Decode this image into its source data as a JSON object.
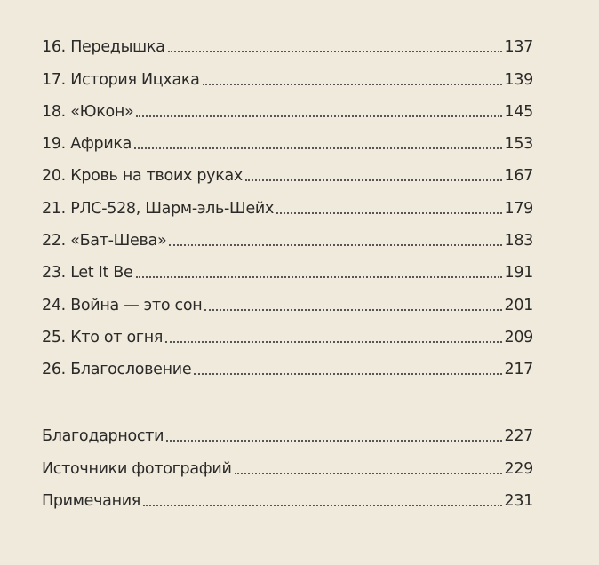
{
  "chapters": [
    {
      "title": "16. Передышка",
      "page": "137"
    },
    {
      "title": "17. История Ицхака",
      "page": "139"
    },
    {
      "title": "18. «Юкон»",
      "page": "145"
    },
    {
      "title": "19. Африка",
      "page": "153"
    },
    {
      "title": "20. Кровь на твоих руках",
      "page": "167"
    },
    {
      "title": "21. РЛС-528, Шарм-эль-Шейх",
      "page": "179"
    },
    {
      "title": "22. «Бат-Шева»",
      "page": "183"
    },
    {
      "title": "23. Let It Be",
      "page": "191"
    },
    {
      "title": "24. Война — это сон",
      "page": "201"
    },
    {
      "title": "25. Кто от огня",
      "page": "209"
    },
    {
      "title": "26. Благословение",
      "page": "217"
    }
  ],
  "back_matter": [
    {
      "title": "Благодарности",
      "page": "227"
    },
    {
      "title": "Источники фотографий",
      "page": "229"
    },
    {
      "title": "Примечания",
      "page": "231"
    }
  ]
}
